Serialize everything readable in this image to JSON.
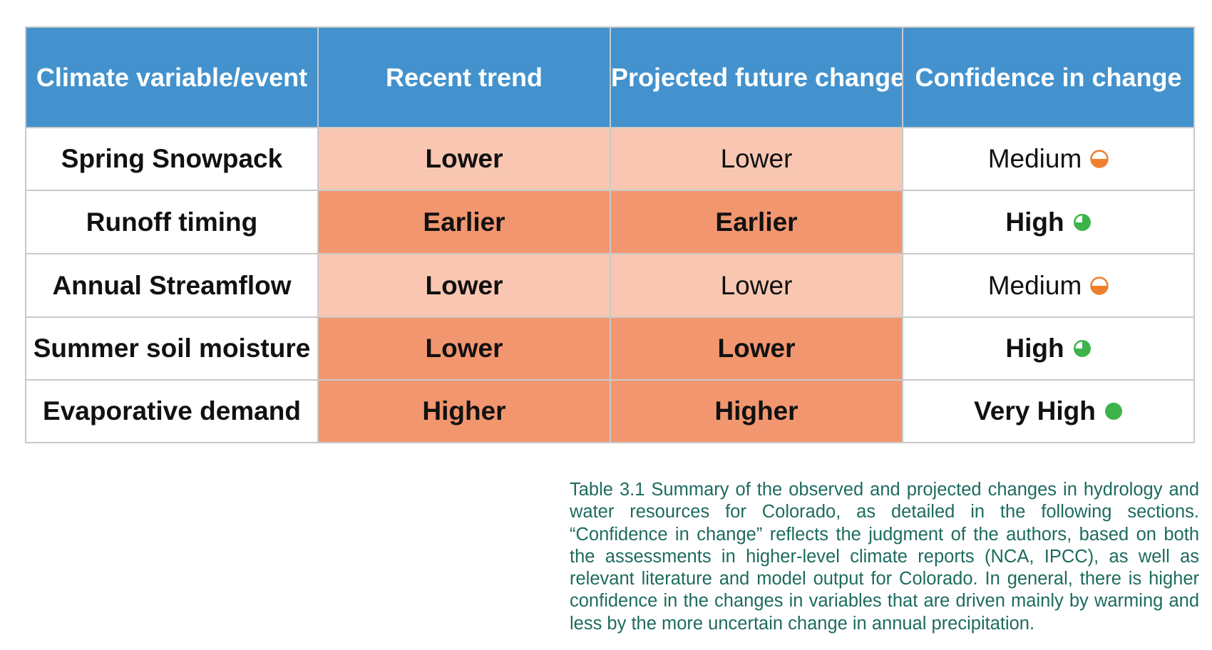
{
  "table": {
    "headers": [
      "Climate variable/event",
      "Recent trend",
      "Projected future change",
      "Confidence in change"
    ],
    "rows": [
      {
        "variable": "Spring Snowpack",
        "recent_trend": "Lower",
        "projected_change": "Lower",
        "confidence": "Medium",
        "confidence_icon": "half-circle-orange-icon"
      },
      {
        "variable": "Runoff timing",
        "recent_trend": "Earlier",
        "projected_change": "Earlier",
        "confidence": "High",
        "confidence_icon": "three-quarter-circle-green-icon"
      },
      {
        "variable": "Annual Streamflow",
        "recent_trend": "Lower",
        "projected_change": "Lower",
        "confidence": "Medium",
        "confidence_icon": "half-circle-orange-icon"
      },
      {
        "variable": "Summer soil moisture",
        "recent_trend": "Lower",
        "projected_change": "Lower",
        "confidence": "High",
        "confidence_icon": "three-quarter-circle-green-icon"
      },
      {
        "variable": "Evaporative demand",
        "recent_trend": "Higher",
        "projected_change": "Higher",
        "confidence": "Very High",
        "confidence_icon": "full-circle-green-icon"
      }
    ]
  },
  "caption": "Table 3.1 Summary of the observed and projected changes in hydrology and water resources for Colorado, as detailed in the following sections. “Confidence in change” reflects the judgment of the authors, based on both the assessments in higher-level climate reports (NCA, IPCC), as well as relevant literature and model output for Colorado. In general, there is higher confidence in the changes in variables that are driven mainly by warming and less by the more uncertain change in annual precipitation.",
  "colors": {
    "header_bg": "#4392cd",
    "light_change": "#f9c7b1",
    "strong_change": "#f2966f",
    "medium_confidence": "#ee7f2d",
    "high_confidence": "#3cb44b",
    "caption_text": "#1d6b5e"
  }
}
